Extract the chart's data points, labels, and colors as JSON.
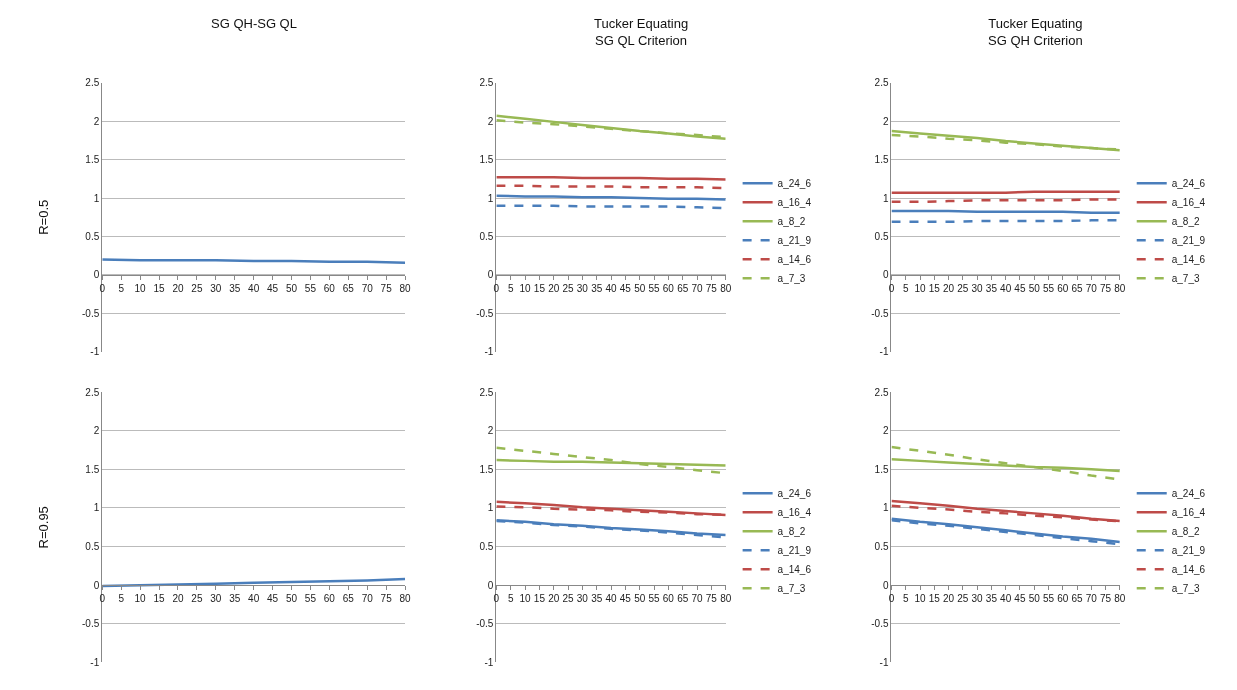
{
  "chart_data": [
    {
      "type": "line",
      "title": "SG QH-SG QL",
      "ylabel": "R=0.5",
      "x": [
        0,
        10,
        20,
        30,
        40,
        50,
        60,
        70,
        80
      ],
      "xlim": [
        0,
        80
      ],
      "xticks": [
        0,
        5,
        10,
        15,
        20,
        25,
        30,
        35,
        40,
        45,
        50,
        55,
        60,
        65,
        70,
        75,
        80
      ],
      "ylim": [
        -1,
        2.5
      ],
      "yticks": [
        -1,
        -0.5,
        0,
        0.5,
        1,
        1.5,
        2,
        2.5
      ],
      "grid": "y",
      "legend": false,
      "series": [
        {
          "color": "#4a7ebb",
          "line_style": "solid",
          "values": [
            0.2,
            0.19,
            0.19,
            0.19,
            0.18,
            0.18,
            0.17,
            0.17,
            0.16
          ]
        }
      ]
    },
    {
      "type": "line",
      "title": "Tucker Equating\nSG QL Criterion",
      "x": [
        0,
        10,
        20,
        30,
        40,
        50,
        60,
        70,
        80
      ],
      "xlim": [
        0,
        80
      ],
      "xticks": [
        0,
        5,
        10,
        15,
        20,
        25,
        30,
        35,
        40,
        45,
        50,
        55,
        60,
        65,
        70,
        75,
        80
      ],
      "ylim": [
        -1,
        2.5
      ],
      "yticks": [
        -1,
        -0.5,
        0,
        0.5,
        1,
        1.5,
        2,
        2.5
      ],
      "grid": "y",
      "legend": "right",
      "series": [
        {
          "name": "a_24_6",
          "color": "#4a7ebb",
          "line_style": "solid",
          "values": [
            1.03,
            1.02,
            1.02,
            1.01,
            1.01,
            1.0,
            0.99,
            0.99,
            0.98
          ]
        },
        {
          "name": "a_16_4",
          "color": "#be4b48",
          "line_style": "solid",
          "values": [
            1.27,
            1.27,
            1.27,
            1.26,
            1.26,
            1.26,
            1.25,
            1.25,
            1.24
          ]
        },
        {
          "name": "a_8_2",
          "color": "#98b954",
          "line_style": "solid",
          "values": [
            2.07,
            2.03,
            1.99,
            1.95,
            1.91,
            1.87,
            1.84,
            1.8,
            1.77
          ]
        },
        {
          "name": "a_21_9",
          "color": "#4a7ebb",
          "line_style": "dashed",
          "values": [
            0.9,
            0.9,
            0.9,
            0.89,
            0.89,
            0.89,
            0.89,
            0.88,
            0.87
          ]
        },
        {
          "name": "a_14_6",
          "color": "#be4b48",
          "line_style": "dashed",
          "values": [
            1.16,
            1.16,
            1.15,
            1.15,
            1.15,
            1.14,
            1.14,
            1.14,
            1.13
          ]
        },
        {
          "name": "a_7_3",
          "color": "#98b954",
          "line_style": "dashed",
          "values": [
            2.01,
            1.98,
            1.96,
            1.93,
            1.9,
            1.87,
            1.84,
            1.82,
            1.79
          ]
        }
      ]
    },
    {
      "type": "line",
      "title": "Tucker Equating\nSG QH Criterion",
      "x": [
        0,
        10,
        20,
        30,
        40,
        50,
        60,
        70,
        80
      ],
      "xlim": [
        0,
        80
      ],
      "xticks": [
        0,
        5,
        10,
        15,
        20,
        25,
        30,
        35,
        40,
        45,
        50,
        55,
        60,
        65,
        70,
        75,
        80
      ],
      "ylim": [
        -1,
        2.5
      ],
      "yticks": [
        -1,
        -0.5,
        0,
        0.5,
        1,
        1.5,
        2,
        2.5
      ],
      "grid": "y",
      "legend": "right",
      "series": [
        {
          "name": "a_24_6",
          "color": "#4a7ebb",
          "line_style": "solid",
          "values": [
            0.83,
            0.83,
            0.83,
            0.82,
            0.82,
            0.82,
            0.82,
            0.81,
            0.81
          ]
        },
        {
          "name": "a_16_4",
          "color": "#be4b48",
          "line_style": "solid",
          "values": [
            1.07,
            1.07,
            1.07,
            1.07,
            1.07,
            1.08,
            1.08,
            1.08,
            1.08
          ]
        },
        {
          "name": "a_8_2",
          "color": "#98b954",
          "line_style": "solid",
          "values": [
            1.87,
            1.84,
            1.81,
            1.78,
            1.74,
            1.71,
            1.68,
            1.65,
            1.62
          ]
        },
        {
          "name": "a_21_9",
          "color": "#4a7ebb",
          "line_style": "dashed",
          "values": [
            0.69,
            0.69,
            0.69,
            0.7,
            0.7,
            0.7,
            0.7,
            0.71,
            0.71
          ]
        },
        {
          "name": "a_14_6",
          "color": "#be4b48",
          "line_style": "dashed",
          "values": [
            0.95,
            0.95,
            0.96,
            0.97,
            0.97,
            0.97,
            0.97,
            0.98,
            0.98
          ]
        },
        {
          "name": "a_7_3",
          "color": "#98b954",
          "line_style": "dashed",
          "values": [
            1.82,
            1.8,
            1.77,
            1.75,
            1.72,
            1.7,
            1.67,
            1.65,
            1.63
          ]
        }
      ]
    },
    {
      "type": "line",
      "ylabel": "R=0.95",
      "x": [
        0,
        10,
        20,
        30,
        40,
        50,
        60,
        70,
        80
      ],
      "xlim": [
        0,
        80
      ],
      "xticks": [
        0,
        5,
        10,
        15,
        20,
        25,
        30,
        35,
        40,
        45,
        50,
        55,
        60,
        65,
        70,
        75,
        80
      ],
      "ylim": [
        -1,
        2.5
      ],
      "yticks": [
        -1,
        -0.5,
        0,
        0.5,
        1,
        1.5,
        2,
        2.5
      ],
      "grid": "y",
      "legend": false,
      "series": [
        {
          "color": "#4a7ebb",
          "line_style": "solid",
          "values": [
            -0.01,
            0.0,
            0.01,
            0.02,
            0.03,
            0.04,
            0.05,
            0.06,
            0.08
          ]
        }
      ]
    },
    {
      "type": "line",
      "x": [
        0,
        10,
        20,
        30,
        40,
        50,
        60,
        70,
        80
      ],
      "xlim": [
        0,
        80
      ],
      "xticks": [
        0,
        5,
        10,
        15,
        20,
        25,
        30,
        35,
        40,
        45,
        50,
        55,
        60,
        65,
        70,
        75,
        80
      ],
      "ylim": [
        -1,
        2.5
      ],
      "yticks": [
        -1,
        -0.5,
        0,
        0.5,
        1,
        1.5,
        2,
        2.5
      ],
      "grid": "y",
      "legend": "right",
      "series": [
        {
          "name": "a_24_6",
          "color": "#4a7ebb",
          "line_style": "solid",
          "values": [
            0.84,
            0.82,
            0.79,
            0.77,
            0.74,
            0.72,
            0.7,
            0.67,
            0.65
          ]
        },
        {
          "name": "a_16_4",
          "color": "#be4b48",
          "line_style": "solid",
          "values": [
            1.08,
            1.06,
            1.04,
            1.01,
            0.99,
            0.97,
            0.95,
            0.93,
            0.91
          ]
        },
        {
          "name": "a_8_2",
          "color": "#98b954",
          "line_style": "solid",
          "values": [
            1.62,
            1.61,
            1.6,
            1.6,
            1.59,
            1.58,
            1.57,
            1.56,
            1.55
          ]
        },
        {
          "name": "a_21_9",
          "color": "#4a7ebb",
          "line_style": "dashed",
          "values": [
            0.83,
            0.81,
            0.78,
            0.76,
            0.73,
            0.71,
            0.68,
            0.65,
            0.62
          ]
        },
        {
          "name": "a_14_6",
          "color": "#be4b48",
          "line_style": "dashed",
          "values": [
            1.02,
            1.01,
            0.99,
            0.98,
            0.97,
            0.95,
            0.94,
            0.92,
            0.91
          ]
        },
        {
          "name": "a_7_3",
          "color": "#98b954",
          "line_style": "dashed",
          "values": [
            1.78,
            1.74,
            1.7,
            1.66,
            1.62,
            1.57,
            1.53,
            1.49,
            1.45
          ]
        }
      ]
    },
    {
      "type": "line",
      "x": [
        0,
        10,
        20,
        30,
        40,
        50,
        60,
        70,
        80
      ],
      "xlim": [
        0,
        80
      ],
      "xticks": [
        0,
        5,
        10,
        15,
        20,
        25,
        30,
        35,
        40,
        45,
        50,
        55,
        60,
        65,
        70,
        75,
        80
      ],
      "ylim": [
        -1,
        2.5
      ],
      "yticks": [
        -1,
        -0.5,
        0,
        0.5,
        1,
        1.5,
        2,
        2.5
      ],
      "grid": "y",
      "legend": "right",
      "series": [
        {
          "name": "a_24_6",
          "color": "#4a7ebb",
          "line_style": "solid",
          "values": [
            0.86,
            0.82,
            0.79,
            0.75,
            0.71,
            0.67,
            0.63,
            0.6,
            0.56
          ]
        },
        {
          "name": "a_16_4",
          "color": "#be4b48",
          "line_style": "solid",
          "values": [
            1.09,
            1.06,
            1.03,
            0.99,
            0.96,
            0.93,
            0.9,
            0.86,
            0.83
          ]
        },
        {
          "name": "a_8_2",
          "color": "#98b954",
          "line_style": "solid",
          "values": [
            1.63,
            1.61,
            1.59,
            1.57,
            1.55,
            1.53,
            1.52,
            1.5,
            1.48
          ]
        },
        {
          "name": "a_21_9",
          "color": "#4a7ebb",
          "line_style": "dashed",
          "values": [
            0.84,
            0.8,
            0.77,
            0.73,
            0.69,
            0.65,
            0.61,
            0.57,
            0.53
          ]
        },
        {
          "name": "a_14_6",
          "color": "#be4b48",
          "line_style": "dashed",
          "values": [
            1.03,
            1.0,
            0.98,
            0.95,
            0.93,
            0.9,
            0.88,
            0.85,
            0.83
          ]
        },
        {
          "name": "a_7_3",
          "color": "#98b954",
          "line_style": "dashed",
          "values": [
            1.79,
            1.74,
            1.69,
            1.63,
            1.58,
            1.53,
            1.48,
            1.42,
            1.37
          ]
        }
      ]
    }
  ]
}
